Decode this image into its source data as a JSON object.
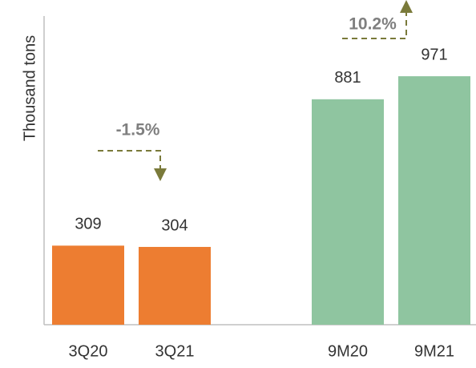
{
  "chart_data": {
    "type": "bar",
    "y_label": "Thousand tons",
    "categories": [
      "3Q20",
      "3Q21",
      null,
      "9M20",
      "9M21"
    ],
    "values": [
      309,
      304,
      null,
      881,
      971
    ],
    "colors": [
      "#ed7d31",
      "#ed7d31",
      null,
      "#8fc5a0",
      "#8fc5a0"
    ],
    "ylim": [
      0,
      1200
    ],
    "grid": false,
    "annotations": [
      "-1.5%",
      "10.2%"
    ]
  }
}
